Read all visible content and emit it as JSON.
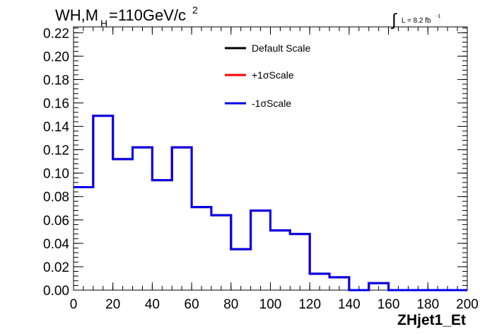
{
  "chart_data": {
    "type": "line",
    "title_main": "WH,M",
    "title_sub": "H",
    "title_rest": "=110GeV/c",
    "title_sup": "2",
    "lumi_integral": "∫",
    "lumi_text": "L = 8.2 fb",
    "lumi_sup": "-1",
    "xlabel": "ZHjet1_Et",
    "ylabel": "",
    "xlim": [
      0,
      200
    ],
    "ylim": [
      0,
      0.225
    ],
    "x_ticks": [
      0,
      20,
      40,
      60,
      80,
      100,
      120,
      140,
      160,
      180,
      200
    ],
    "y_ticks": [
      "0.00",
      "0.02",
      "0.04",
      "0.06",
      "0.08",
      "0.10",
      "0.12",
      "0.14",
      "0.16",
      "0.18",
      "0.20",
      "0.22"
    ],
    "bin_edges": [
      0,
      10,
      20,
      30,
      40,
      50,
      60,
      70,
      80,
      90,
      100,
      110,
      120,
      130,
      140,
      150,
      160,
      170,
      180,
      190,
      200
    ],
    "series": [
      {
        "name": "Default Scale",
        "color": "#000000",
        "values": [
          0.088,
          0.149,
          0.112,
          0.122,
          0.094,
          0.122,
          0.071,
          0.064,
          0.035,
          0.068,
          0.051,
          0.048,
          0.014,
          0.011,
          0.0,
          0.006,
          0.0,
          0.0,
          0.0,
          0.0
        ]
      },
      {
        "name": "+1σScale",
        "color": "#ff0000",
        "values": [
          0.088,
          0.149,
          0.112,
          0.122,
          0.094,
          0.122,
          0.071,
          0.064,
          0.035,
          0.068,
          0.051,
          0.048,
          0.014,
          0.011,
          0.0,
          0.006,
          0.0,
          0.0,
          0.0,
          0.0
        ]
      },
      {
        "name": "-1σScale",
        "color": "#0000ee",
        "values": [
          0.088,
          0.149,
          0.112,
          0.122,
          0.094,
          0.122,
          0.071,
          0.064,
          0.035,
          0.068,
          0.051,
          0.048,
          0.014,
          0.011,
          0.0,
          0.006,
          0.0,
          0.0,
          0.0,
          0.0
        ]
      }
    ],
    "legend_placement": "top-center",
    "grid": false
  }
}
